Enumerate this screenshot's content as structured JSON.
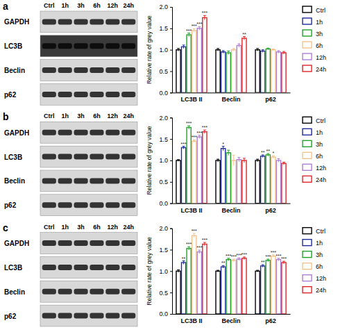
{
  "chart_data": [
    {
      "type": "bar",
      "title": "a",
      "blot_lanes": [
        "Ctrl",
        "1h",
        "3h",
        "6h",
        "12h",
        "24h"
      ],
      "blot_rows": [
        "GAPDH",
        "LC3B",
        "Beclin",
        "p62"
      ],
      "y_label": "Relative rate of grey value",
      "categories": [
        "LC3B II",
        "Beclin",
        "p62"
      ],
      "ylim": [
        0,
        2.0
      ],
      "yticks": [
        {
          "value": 0,
          "label": "0.0"
        },
        {
          "value": 0.5,
          "label": "0.5"
        },
        {
          "value": 1.0,
          "label": "1.0"
        },
        {
          "value": 1.5,
          "label": "1.5"
        },
        {
          "value": 2.0,
          "label": "2.0"
        }
      ],
      "legend": "right",
      "series": [
        {
          "name": "Ctrl",
          "color": "#000000",
          "values": [
            1.0,
            1.0,
            1.0
          ],
          "errors": [
            0.03,
            0.03,
            0.03
          ],
          "significance": [
            null,
            null,
            null
          ]
        },
        {
          "name": "1h",
          "color": "#1f2e9a",
          "values": [
            1.07,
            0.95,
            0.97
          ],
          "errors": [
            0.04,
            0.03,
            0.03
          ],
          "significance": [
            null,
            null,
            null
          ]
        },
        {
          "name": "3h",
          "color": "#22a32a",
          "values": [
            1.35,
            0.93,
            1.02
          ],
          "errors": [
            0.04,
            0.04,
            0.02
          ],
          "significance": [
            "***",
            null,
            null
          ]
        },
        {
          "name": "6h",
          "color": "#f2c48d",
          "values": [
            1.45,
            1.0,
            1.0
          ],
          "errors": [
            0.04,
            0.03,
            0.02
          ],
          "significance": [
            "***",
            null,
            null
          ]
        },
        {
          "name": "12h",
          "color": "#b07fd6",
          "values": [
            1.5,
            1.1,
            0.95
          ],
          "errors": [
            0.04,
            0.04,
            0.03
          ],
          "significance": [
            "***",
            null,
            null
          ]
        },
        {
          "name": "24h",
          "color": "#e0262a",
          "values": [
            1.75,
            1.27,
            0.93
          ],
          "errors": [
            0.05,
            0.04,
            0.03
          ],
          "significance": [
            "***",
            "**",
            null
          ]
        }
      ]
    },
    {
      "type": "bar",
      "title": "b",
      "blot_lanes": [
        "Ctrl",
        "1h",
        "3h",
        "6h",
        "12h",
        "24h"
      ],
      "blot_rows": [
        "GAPDH",
        "LC3B",
        "Beclin",
        "p62"
      ],
      "y_label": "Relative rate of grey value",
      "categories": [
        "LC3B II",
        "Beclin",
        "p62"
      ],
      "ylim": [
        0,
        2.0
      ],
      "yticks": [
        {
          "value": 0,
          "label": "0.0"
        },
        {
          "value": 0.5,
          "label": "0.5"
        },
        {
          "value": 1.0,
          "label": "1.0"
        },
        {
          "value": 1.5,
          "label": "1.5"
        },
        {
          "value": 2.0,
          "label": "2.0"
        }
      ],
      "legend": "right",
      "series": [
        {
          "name": "Ctrl",
          "color": "#000000",
          "values": [
            1.0,
            1.0,
            1.0
          ],
          "errors": [
            0.02,
            0.03,
            0.03
          ],
          "significance": [
            null,
            null,
            null
          ]
        },
        {
          "name": "1h",
          "color": "#1f2e9a",
          "values": [
            1.3,
            1.28,
            1.1
          ],
          "errors": [
            0.03,
            0.05,
            0.03
          ],
          "significance": [
            "***",
            "*",
            "**"
          ]
        },
        {
          "name": "3h",
          "color": "#22a32a",
          "values": [
            1.77,
            1.18,
            1.13
          ],
          "errors": [
            0.04,
            0.06,
            0.03
          ],
          "significance": [
            "***",
            null,
            "**"
          ]
        },
        {
          "name": "6h",
          "color": "#f2c48d",
          "values": [
            1.45,
            1.0,
            1.08
          ],
          "errors": [
            0.03,
            0.12,
            0.03
          ],
          "significance": [
            "***",
            null,
            "*"
          ]
        },
        {
          "name": "12h",
          "color": "#b07fd6",
          "values": [
            1.55,
            1.02,
            1.0
          ],
          "errors": [
            0.04,
            0.05,
            0.04
          ],
          "significance": [
            "***",
            null,
            null
          ]
        },
        {
          "name": "24h",
          "color": "#e0262a",
          "values": [
            1.67,
            1.0,
            0.93
          ],
          "errors": [
            0.04,
            0.05,
            0.03
          ],
          "significance": [
            "***",
            null,
            null
          ]
        }
      ]
    },
    {
      "type": "bar",
      "title": "c",
      "blot_lanes": [
        "Ctrl",
        "1h",
        "3h",
        "6h",
        "12h",
        "24h"
      ],
      "blot_rows": [
        "GAPDH",
        "LC3B",
        "Beclin",
        "p62"
      ],
      "y_label": "Relative rate of grey value",
      "categories": [
        "LC3B II",
        "Beclin",
        "p62"
      ],
      "ylim": [
        0,
        2.0
      ],
      "yticks": [
        {
          "value": 0,
          "label": "0.0"
        },
        {
          "value": 0.5,
          "label": "0.5"
        },
        {
          "value": 1.0,
          "label": "1.0"
        },
        {
          "value": 1.5,
          "label": "1.5"
        },
        {
          "value": 2.0,
          "label": "2.0"
        }
      ],
      "legend": "right",
      "series": [
        {
          "name": "Ctrl",
          "color": "#000000",
          "values": [
            1.0,
            1.0,
            1.0
          ],
          "errors": [
            0.03,
            0.02,
            0.02
          ],
          "significance": [
            null,
            null,
            null
          ]
        },
        {
          "name": "1h",
          "color": "#1f2e9a",
          "values": [
            1.2,
            1.1,
            1.12
          ],
          "errors": [
            0.04,
            0.03,
            0.03
          ],
          "significance": [
            "**",
            "**",
            "**"
          ]
        },
        {
          "name": "3h",
          "color": "#22a32a",
          "values": [
            1.53,
            1.27,
            1.25
          ],
          "errors": [
            0.04,
            0.03,
            0.03
          ],
          "significance": [
            "***",
            "***",
            "***"
          ]
        },
        {
          "name": "6h",
          "color": "#f2c48d",
          "values": [
            1.83,
            1.25,
            1.35
          ],
          "errors": [
            0.05,
            0.03,
            0.03
          ],
          "significance": [
            "***",
            "***",
            "***"
          ]
        },
        {
          "name": "12h",
          "color": "#b07fd6",
          "values": [
            1.45,
            1.28,
            1.27
          ],
          "errors": [
            0.04,
            0.03,
            0.03
          ],
          "significance": [
            "***",
            "***",
            "***"
          ]
        },
        {
          "name": "24h",
          "color": "#e0262a",
          "values": [
            1.63,
            1.3,
            1.2
          ],
          "errors": [
            0.04,
            0.03,
            0.03
          ],
          "significance": [
            "***",
            "***",
            "***"
          ]
        }
      ]
    }
  ]
}
